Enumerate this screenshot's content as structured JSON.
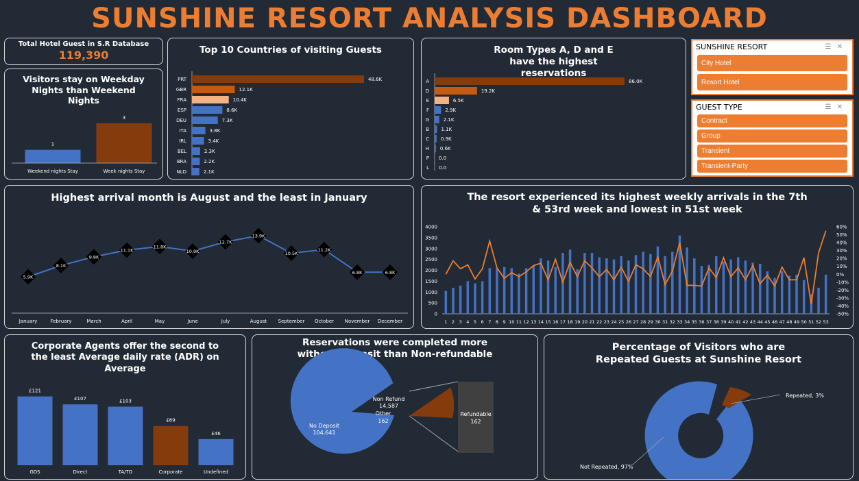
{
  "title": "SUNSHINE RESORT ANALYSIS DASHBOARD",
  "kpi": {
    "label": "Total Hotel Guest in S.R Database",
    "value": "119,390"
  },
  "weekday": {
    "title": "Visitors stay on Weekday Nights than Weekend Nights",
    "chart_data": {
      "type": "bar",
      "categories": [
        "Weekend nights Stay",
        "Week nights Stay"
      ],
      "values": [
        1,
        3
      ],
      "labels": [
        "1",
        "3"
      ]
    }
  },
  "countries": {
    "title": "Top 10 Countries of visiting Guests",
    "chart_data": {
      "type": "bar",
      "orientation": "horizontal",
      "categories": [
        "PRT",
        "GBR",
        "FRA",
        "ESP",
        "DEU",
        "ITA",
        "IRL",
        "BEL",
        "BRA",
        "NLD"
      ],
      "values": [
        48.6,
        12.1,
        10.4,
        8.6,
        7.3,
        3.8,
        3.4,
        2.3,
        2.2,
        2.1
      ],
      "labels": [
        "48.6K",
        "12.1K",
        "10.4K",
        "8.6K",
        "7.3K",
        "3.8K",
        "3.4K",
        "2.3K",
        "2.2K",
        "2.1K"
      ]
    }
  },
  "rooms": {
    "title": "Room Types A, D and E have the highest reservations",
    "chart_data": {
      "type": "bar",
      "orientation": "horizontal",
      "categories": [
        "A",
        "D",
        "E",
        "F",
        "G",
        "B",
        "C",
        "H",
        "P",
        "L"
      ],
      "values": [
        86.0,
        19.2,
        6.5,
        2.9,
        2.1,
        1.1,
        0.9,
        0.6,
        0.0,
        0.0
      ],
      "labels": [
        "86.0K",
        "19.2K",
        "6.5K",
        "2.9K",
        "2.1K",
        "1.1K",
        "0.9K",
        "0.6K",
        "0.0",
        "0.0"
      ]
    }
  },
  "slicer_resort": {
    "header": "SUNSHINE RESORT",
    "items": [
      "City Hotel",
      "Resort Hotel"
    ]
  },
  "slicer_guest": {
    "header": "GUEST TYPE",
    "items": [
      "Contract",
      "Group",
      "Transient",
      "Transient-Party"
    ]
  },
  "monthly": {
    "title": "Highest arrival month is August and the least in January",
    "chart_data": {
      "type": "line",
      "categories": [
        "January",
        "February",
        "March",
        "April",
        "May",
        "June",
        "July",
        "August",
        "September",
        "October",
        "November",
        "December"
      ],
      "values": [
        5.9,
        8.1,
        9.8,
        11.1,
        11.8,
        10.9,
        12.7,
        13.9,
        10.5,
        11.2,
        6.8,
        6.8
      ],
      "labels": [
        "5.9K",
        "8.1K",
        "9.8K",
        "11.1K",
        "11.8K",
        "10.9K",
        "12.7K",
        "13.9K",
        "10.5K",
        "11.2K",
        "6.8K",
        "6.8K"
      ]
    }
  },
  "weekly": {
    "title": "The resort experienced its highest weekly arrivals in the 7th & 53rd week and lowest in 51st week",
    "chart_data": {
      "type": "bar+line",
      "x": [
        1,
        2,
        3,
        4,
        5,
        6,
        7,
        8,
        9,
        10,
        11,
        12,
        13,
        14,
        15,
        16,
        17,
        18,
        19,
        20,
        21,
        22,
        23,
        24,
        25,
        26,
        27,
        28,
        29,
        30,
        31,
        32,
        33,
        34,
        35,
        36,
        37,
        38,
        39,
        40,
        41,
        42,
        43,
        44,
        45,
        46,
        47,
        48,
        49,
        50,
        51,
        52,
        53
      ],
      "ylim": [
        0,
        4000
      ],
      "y_ticks": [
        0,
        500,
        1000,
        1500,
        2000,
        2500,
        3000,
        3500,
        4000
      ],
      "y2lim": [
        -50,
        60
      ],
      "y2_ticks": [
        "-50%",
        "-40%",
        "-30%",
        "-20%",
        "-10%",
        "0%",
        "10%",
        "20%",
        "30%",
        "40%",
        "50%",
        "60%"
      ],
      "series": [
        {
          "type": "bar",
          "values": [
            1050,
            1200,
            1300,
            1500,
            1400,
            1500,
            2100,
            2100,
            2150,
            2100,
            1850,
            2100,
            2200,
            2550,
            2450,
            2150,
            2800,
            2950,
            2050,
            2800,
            2800,
            2600,
            2550,
            2500,
            2650,
            2450,
            2700,
            2850,
            2750,
            3100,
            2650,
            2850,
            3600,
            3050,
            2550,
            2200,
            2250,
            2650,
            2400,
            2500,
            2600,
            2450,
            2350,
            2300,
            1950,
            1650,
            1950,
            1750,
            1800,
            1550,
            900,
            1200,
            1800
          ]
        },
        {
          "type": "line",
          "axis": "secondary",
          "values": [
            0,
            17,
            7,
            12,
            -6,
            7,
            42,
            8,
            -5,
            2,
            -3,
            3,
            11,
            14,
            -7,
            19,
            -10,
            15,
            -3,
            17,
            8,
            -3,
            6,
            -7,
            9,
            -9,
            12,
            7,
            -3,
            22,
            -13,
            4,
            40,
            -14,
            -14,
            -15,
            8,
            -4,
            21,
            -3,
            8,
            -7,
            11,
            -12,
            -1,
            -15,
            9,
            -7,
            -7,
            21,
            -38,
            27,
            55
          ]
        }
      ]
    }
  },
  "adr": {
    "title": "Corporate Agents offer the second to the least Average daily rate (ADR) on Average",
    "chart_data": {
      "type": "bar",
      "categories": [
        "GDS",
        "Direct",
        "TA/TO",
        "Corporate",
        "Undefined"
      ],
      "values": [
        121,
        107,
        103,
        69,
        46
      ],
      "labels": [
        "£121",
        "£107",
        "£103",
        "£69",
        "£46"
      ]
    }
  },
  "deposit": {
    "title": "Reservations were completed more without Deposit than Non-refundable",
    "chart_data": {
      "type": "pie-of-pie",
      "slices": [
        {
          "name": "No Deposit",
          "value": 104641
        },
        {
          "name": "Non Refund",
          "value": 14587
        },
        {
          "name": "Other",
          "value": 162
        }
      ],
      "secondary": [
        {
          "name": "Refundable",
          "value": 162
        }
      ]
    },
    "labels": {
      "no_deposit": "No Deposit",
      "no_deposit_val": "104,641",
      "non_refund": "Non Refund",
      "non_refund_val": "14,587",
      "other": "Other",
      "other_val": "162",
      "refundable": "Refundable",
      "refundable_val": "162"
    }
  },
  "repeated": {
    "title": "Percentage of Visitors who are Repeated Guests at Sunshine Resort",
    "chart_data": {
      "type": "doughnut",
      "slices": [
        {
          "name": "Repeated",
          "value": 3
        },
        {
          "name": "Not Repeated",
          "value": 97
        }
      ]
    },
    "labels": {
      "repeated": "Repeated, 3%",
      "not_repeated": "Not Repeated, 97%"
    }
  },
  "colors": {
    "accent": "#ed7d31",
    "blue": "#4472c4",
    "brown": "#843c0c",
    "dark_orange": "#c55a11",
    "peach": "#f4b183",
    "background": "#222a35"
  }
}
